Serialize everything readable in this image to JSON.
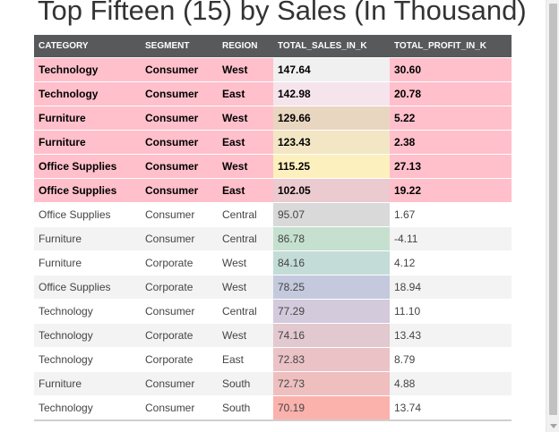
{
  "title": "Top Fifteen (15) by Sales (In Thousand)",
  "table": {
    "headers": [
      "CATEGORY",
      "SEGMENT",
      "REGION",
      "TOTAL_SALES_IN_K",
      "TOTAL_PROFIT_IN_K"
    ],
    "rows": [
      {
        "category": "Technology",
        "segment": "Consumer",
        "region": "West",
        "sales": "147.64",
        "profit": "30.60",
        "highlight": true,
        "sales_color": "#f0f0f0"
      },
      {
        "category": "Technology",
        "segment": "Consumer",
        "region": "East",
        "sales": "142.98",
        "profit": "20.78",
        "highlight": true,
        "sales_color": "#f6e4ec"
      },
      {
        "category": "Furniture",
        "segment": "Consumer",
        "region": "West",
        "sales": "129.66",
        "profit": "5.22",
        "highlight": true,
        "sales_color": "#e9d6c0"
      },
      {
        "category": "Furniture",
        "segment": "Consumer",
        "region": "East",
        "sales": "123.43",
        "profit": "2.38",
        "highlight": true,
        "sales_color": "#f2e6c4"
      },
      {
        "category": "Office Supplies",
        "segment": "Consumer",
        "region": "West",
        "sales": "115.25",
        "profit": "27.13",
        "highlight": true,
        "sales_color": "#fdf0bf"
      },
      {
        "category": "Office Supplies",
        "segment": "Consumer",
        "region": "East",
        "sales": "102.05",
        "profit": "19.22",
        "highlight": true,
        "sales_color": "#ebcad0"
      },
      {
        "category": "Office Supplies",
        "segment": "Consumer",
        "region": "Central",
        "sales": "95.07",
        "profit": "1.67",
        "highlight": false,
        "sales_color": "#d9d9d9"
      },
      {
        "category": "Furniture",
        "segment": "Consumer",
        "region": "Central",
        "sales": "86.78",
        "profit": "-4.11",
        "highlight": false,
        "sales_color": "#c5e0cf"
      },
      {
        "category": "Furniture",
        "segment": "Corporate",
        "region": "West",
        "sales": "84.16",
        "profit": "4.12",
        "highlight": false,
        "sales_color": "#c3dcd7"
      },
      {
        "category": "Office Supplies",
        "segment": "Corporate",
        "region": "West",
        "sales": "78.25",
        "profit": "18.94",
        "highlight": false,
        "sales_color": "#c4c9de"
      },
      {
        "category": "Technology",
        "segment": "Consumer",
        "region": "Central",
        "sales": "77.29",
        "profit": "11.10",
        "highlight": false,
        "sales_color": "#d3cadb"
      },
      {
        "category": "Technology",
        "segment": "Corporate",
        "region": "West",
        "sales": "74.16",
        "profit": "13.43",
        "highlight": false,
        "sales_color": "#e2c8cf"
      },
      {
        "category": "Technology",
        "segment": "Corporate",
        "region": "East",
        "sales": "72.83",
        "profit": "8.79",
        "highlight": false,
        "sales_color": "#ebc3c6"
      },
      {
        "category": "Furniture",
        "segment": "Consumer",
        "region": "South",
        "sales": "72.73",
        "profit": "4.88",
        "highlight": false,
        "sales_color": "#efbfbf"
      },
      {
        "category": "Technology",
        "segment": "Consumer",
        "region": "South",
        "sales": "70.19",
        "profit": "13.74",
        "highlight": false,
        "sales_color": "#fbb2ad"
      }
    ]
  },
  "colors": {
    "header_bg": "#58595b",
    "highlight_row": "#ffc0cb",
    "even_row": "#f3f3f3"
  }
}
